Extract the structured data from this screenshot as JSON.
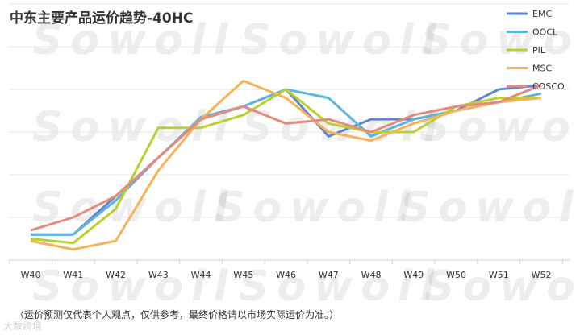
{
  "title": "中东主要产品运价趋势-40HC",
  "note": "（运价预测仅代表个人观点，仅供参考，最终价格请以市场实际运价为准。）",
  "watermark": "Sowoll",
  "bottom_mark": "大数跨境",
  "chart_data": {
    "type": "line",
    "title": "中东主要产品运价趋势-40HC",
    "categories": [
      "W40",
      "W41",
      "W42",
      "W43",
      "W44",
      "W45",
      "W46",
      "W47",
      "W48",
      "W49",
      "W50",
      "W51",
      "W52"
    ],
    "grid": true,
    "legend_placement": "top-right",
    "ylim": [
      0,
      6
    ],
    "series": [
      {
        "name": "EMC",
        "color": "#5b87d1",
        "values": [
          0.6,
          0.6,
          1.5,
          2.4,
          3.3,
          3.6,
          4.0,
          2.9,
          3.3,
          3.3,
          3.5,
          4.0,
          4.1
        ]
      },
      {
        "name": "OOCL",
        "color": "#5db4dd",
        "values": [
          0.6,
          0.6,
          1.4,
          2.4,
          3.35,
          3.6,
          4.0,
          3.8,
          2.9,
          3.3,
          3.5,
          3.7,
          3.9
        ]
      },
      {
        "name": "PIL",
        "color": "#b8d12e",
        "values": [
          0.5,
          0.4,
          1.2,
          3.1,
          3.1,
          3.4,
          4.0,
          3.2,
          3.0,
          3.0,
          3.6,
          3.8,
          3.8
        ]
      },
      {
        "name": "MSC",
        "color": "#f5b358",
        "values": [
          0.45,
          0.25,
          0.45,
          2.1,
          3.3,
          4.2,
          3.8,
          3.0,
          2.8,
          3.2,
          3.5,
          3.7,
          3.8
        ]
      },
      {
        "name": "COSCO",
        "color": "#e58a7c",
        "values": [
          0.7,
          1.0,
          1.5,
          2.4,
          3.3,
          3.6,
          3.2,
          3.3,
          3.0,
          3.4,
          3.6,
          3.7,
          4.1
        ]
      }
    ]
  }
}
